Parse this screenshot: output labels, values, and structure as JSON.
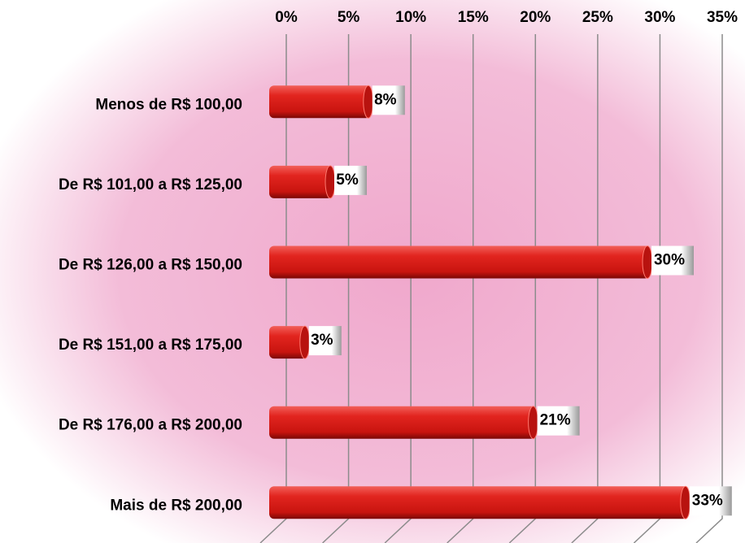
{
  "chart_data": {
    "type": "bar",
    "orientation": "horizontal",
    "categories": [
      "Menos de R$ 100,00",
      "De R$ 101,00 a R$ 125,00",
      "De R$ 126,00 a R$ 150,00",
      "De R$ 151,00 a R$ 175,00",
      "De R$ 176,00 a R$ 200,00",
      "Mais de R$ 200,00"
    ],
    "values": [
      8,
      5,
      30,
      3,
      21,
      33
    ],
    "value_labels": [
      "8%",
      "5%",
      "30%",
      "3%",
      "21%",
      "33%"
    ],
    "color": "#d9201c",
    "xlim": [
      0,
      35
    ],
    "xticks": [
      {
        "value": 0,
        "label": "0%"
      },
      {
        "value": 5,
        "label": "5%"
      },
      {
        "value": 10,
        "label": "10%"
      },
      {
        "value": 15,
        "label": "15%"
      },
      {
        "value": 20,
        "label": "20%"
      },
      {
        "value": 25,
        "label": "25%"
      },
      {
        "value": 30,
        "label": "30%"
      },
      {
        "value": 35,
        "label": "35%"
      }
    ],
    "grid": true
  }
}
